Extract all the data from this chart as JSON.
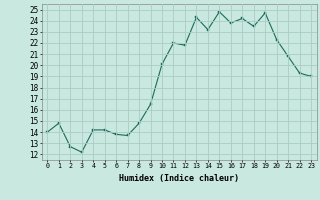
{
  "x": [
    0,
    1,
    2,
    3,
    4,
    5,
    6,
    7,
    8,
    9,
    10,
    11,
    12,
    13,
    14,
    15,
    16,
    17,
    18,
    19,
    20,
    21,
    22,
    23
  ],
  "y": [
    14.0,
    14.8,
    12.7,
    12.2,
    14.2,
    14.2,
    13.8,
    13.7,
    14.8,
    16.5,
    20.1,
    22.0,
    21.8,
    24.3,
    23.2,
    24.8,
    23.8,
    24.2,
    23.5,
    24.7,
    22.3,
    20.8,
    19.3,
    19.0
  ],
  "bg_color": "#c8e8e0",
  "grid_color": "#aaccc4",
  "line_color": "#1a6b5a",
  "marker_color": "#1a6b5a",
  "xlabel": "Humidex (Indice chaleur)",
  "xlabel_fontsize": 6.0,
  "ytick_fontsize": 5.5,
  "xtick_fontsize": 4.8,
  "ylabel_ticks": [
    12,
    13,
    14,
    15,
    16,
    17,
    18,
    19,
    20,
    21,
    22,
    23,
    24,
    25
  ],
  "xlim": [
    -0.5,
    23.5
  ],
  "ylim": [
    11.5,
    25.5
  ]
}
